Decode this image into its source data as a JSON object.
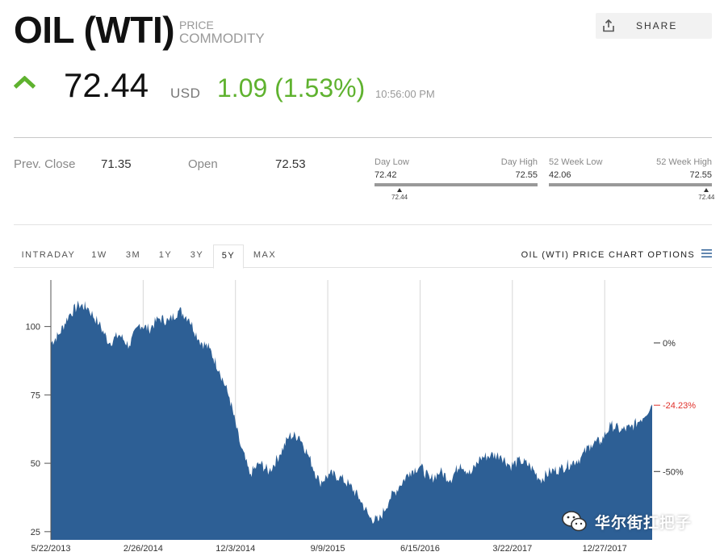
{
  "header": {
    "title": "OIL (WTI)",
    "kind_line1": "PRICE",
    "kind_line2": "COMMODITY",
    "share_label": "SHARE"
  },
  "quote": {
    "price": "72.44",
    "currency": "USD",
    "change": "1.09 (1.53%)",
    "time": "10:56:00 PM",
    "direction": "up",
    "up_color": "#5fb22f"
  },
  "stats": {
    "prev_close_label": "Prev. Close",
    "prev_close": "71.35",
    "open_label": "Open",
    "open": "72.53"
  },
  "day_range": {
    "low_label": "Day Low",
    "high_label": "Day High",
    "low": "72.42",
    "high": "72.55",
    "current": "72.44"
  },
  "week52_range": {
    "low_label": "52 Week Low",
    "high_label": "52 Week High",
    "low": "42.06",
    "high": "72.55",
    "current": "72.44"
  },
  "tabs": [
    {
      "label": "INTRADAY",
      "active": false
    },
    {
      "label": "1W",
      "active": false
    },
    {
      "label": "3M",
      "active": false
    },
    {
      "label": "1Y",
      "active": false
    },
    {
      "label": "3Y",
      "active": false
    },
    {
      "label": "5Y",
      "active": true
    },
    {
      "label": "MAX",
      "active": false
    }
  ],
  "chart_options_label": "OIL (WTI) PRICE CHART OPTIONS",
  "chart_data": {
    "type": "area",
    "color": "#2d5f95",
    "ylim": [
      22,
      117
    ],
    "y_ticks": [
      100,
      75,
      50,
      25
    ],
    "x_tick_labels": [
      "5/22/2013",
      "2/26/2014",
      "12/3/2014",
      "9/9/2015",
      "6/15/2016",
      "3/22/2017",
      "12/27/2017"
    ],
    "right_axis": {
      "labels": [
        "0%",
        "-24.23%",
        "-50%"
      ],
      "values": [
        94.0,
        71.22,
        47.0
      ],
      "highlight_color": "#e0302a"
    },
    "x": [
      "2013-05-22",
      "2013-06-15",
      "2013-07-15",
      "2013-08-15",
      "2013-09-10",
      "2013-10-15",
      "2013-11-15",
      "2013-12-15",
      "2014-01-15",
      "2014-02-15",
      "2014-03-15",
      "2014-04-15",
      "2014-05-15",
      "2014-06-15",
      "2014-07-15",
      "2014-08-15",
      "2014-09-15",
      "2014-10-15",
      "2014-11-15",
      "2014-12-15",
      "2015-01-15",
      "2015-02-15",
      "2015-03-15",
      "2015-04-15",
      "2015-05-15",
      "2015-06-15",
      "2015-07-15",
      "2015-08-15",
      "2015-09-15",
      "2015-10-15",
      "2015-11-15",
      "2015-12-15",
      "2016-01-15",
      "2016-02-11",
      "2016-03-15",
      "2016-04-15",
      "2016-05-15",
      "2016-06-15",
      "2016-07-15",
      "2016-08-15",
      "2016-09-15",
      "2016-10-15",
      "2016-11-15",
      "2016-12-15",
      "2017-01-15",
      "2017-02-15",
      "2017-03-15",
      "2017-04-15",
      "2017-05-15",
      "2017-06-15",
      "2017-07-15",
      "2017-08-15",
      "2017-09-15",
      "2017-10-15",
      "2017-11-15",
      "2017-12-15",
      "2018-01-15",
      "2018-02-15",
      "2018-03-15",
      "2018-04-15",
      "2018-05-20"
    ],
    "values": [
      94,
      97,
      104,
      108,
      107,
      101,
      94,
      97,
      93,
      101,
      99,
      103,
      102,
      106,
      103,
      95,
      92,
      84,
      74,
      58,
      46,
      50,
      47,
      53,
      60,
      60,
      52,
      43,
      46,
      45,
      42,
      37,
      30,
      29,
      37,
      42,
      47,
      49,
      44,
      47,
      44,
      50,
      46,
      52,
      53,
      53,
      49,
      51,
      49,
      44,
      47,
      48,
      50,
      52,
      57,
      58,
      64,
      62,
      63,
      66,
      71.5
    ]
  },
  "watermark": {
    "text": "华尔街扛把子",
    "icon": "wechat-icon"
  }
}
